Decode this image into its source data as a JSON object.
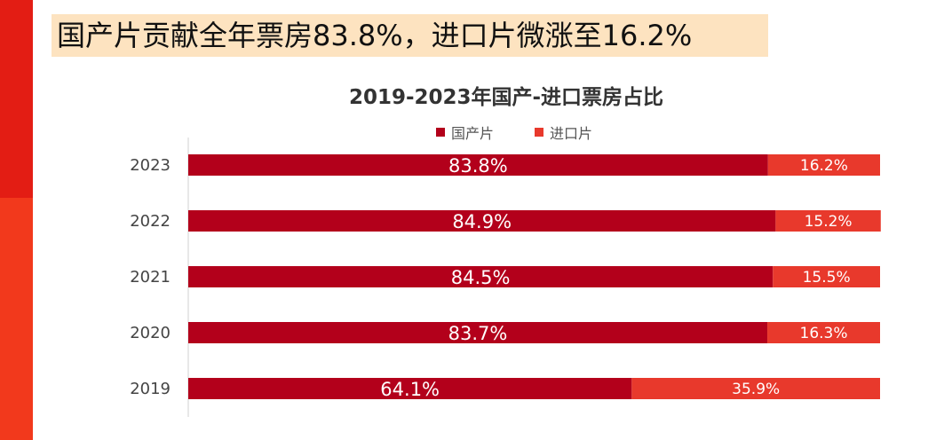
{
  "headline": "国产片贡献全年票房83.8%，进口片微涨至16.2%",
  "colors": {
    "domestic": "#b3001b",
    "imported": "#e8392c",
    "headline_bg": "#fde3c0",
    "accent_red": "#e31d14"
  },
  "chart_data": {
    "type": "bar",
    "orientation": "horizontal",
    "stacked": "percent",
    "title": "2019-2023年国产-进口票房占比",
    "categories": [
      "2023",
      "2022",
      "2021",
      "2020",
      "2019"
    ],
    "series": [
      {
        "name": "国产片",
        "values": [
          83.8,
          84.9,
          84.5,
          83.7,
          64.1
        ],
        "labels": [
          "83.8%",
          "84.9%",
          "84.5%",
          "83.7%",
          "64.1%"
        ]
      },
      {
        "name": "进口片",
        "values": [
          16.2,
          15.2,
          15.5,
          16.3,
          35.9
        ],
        "labels": [
          "16.2%",
          "15.2%",
          "15.5%",
          "16.3%",
          "35.9%"
        ]
      }
    ],
    "xlim": [
      0,
      100
    ],
    "legend": "top-center",
    "grid": false
  }
}
